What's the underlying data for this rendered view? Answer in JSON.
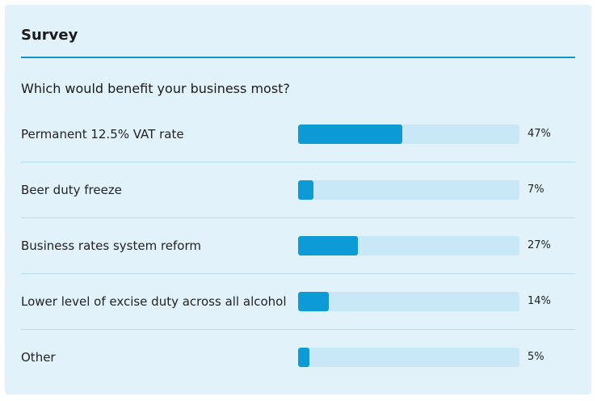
{
  "survey": {
    "title": "Survey",
    "question": "Which would benefit your business most?",
    "accent_color": "#0c9bd7",
    "options": [
      {
        "label": "Permanent 12.5% VAT rate",
        "percent": 47,
        "percent_label": "47%"
      },
      {
        "label": "Beer duty freeze",
        "percent": 7,
        "percent_label": "7%"
      },
      {
        "label": "Business rates system reform",
        "percent": 27,
        "percent_label": "27%"
      },
      {
        "label": "Lower level of excise duty across all alcohol",
        "percent": 14,
        "percent_label": "14%"
      },
      {
        "label": "Other",
        "percent": 5,
        "percent_label": "5%"
      }
    ]
  }
}
